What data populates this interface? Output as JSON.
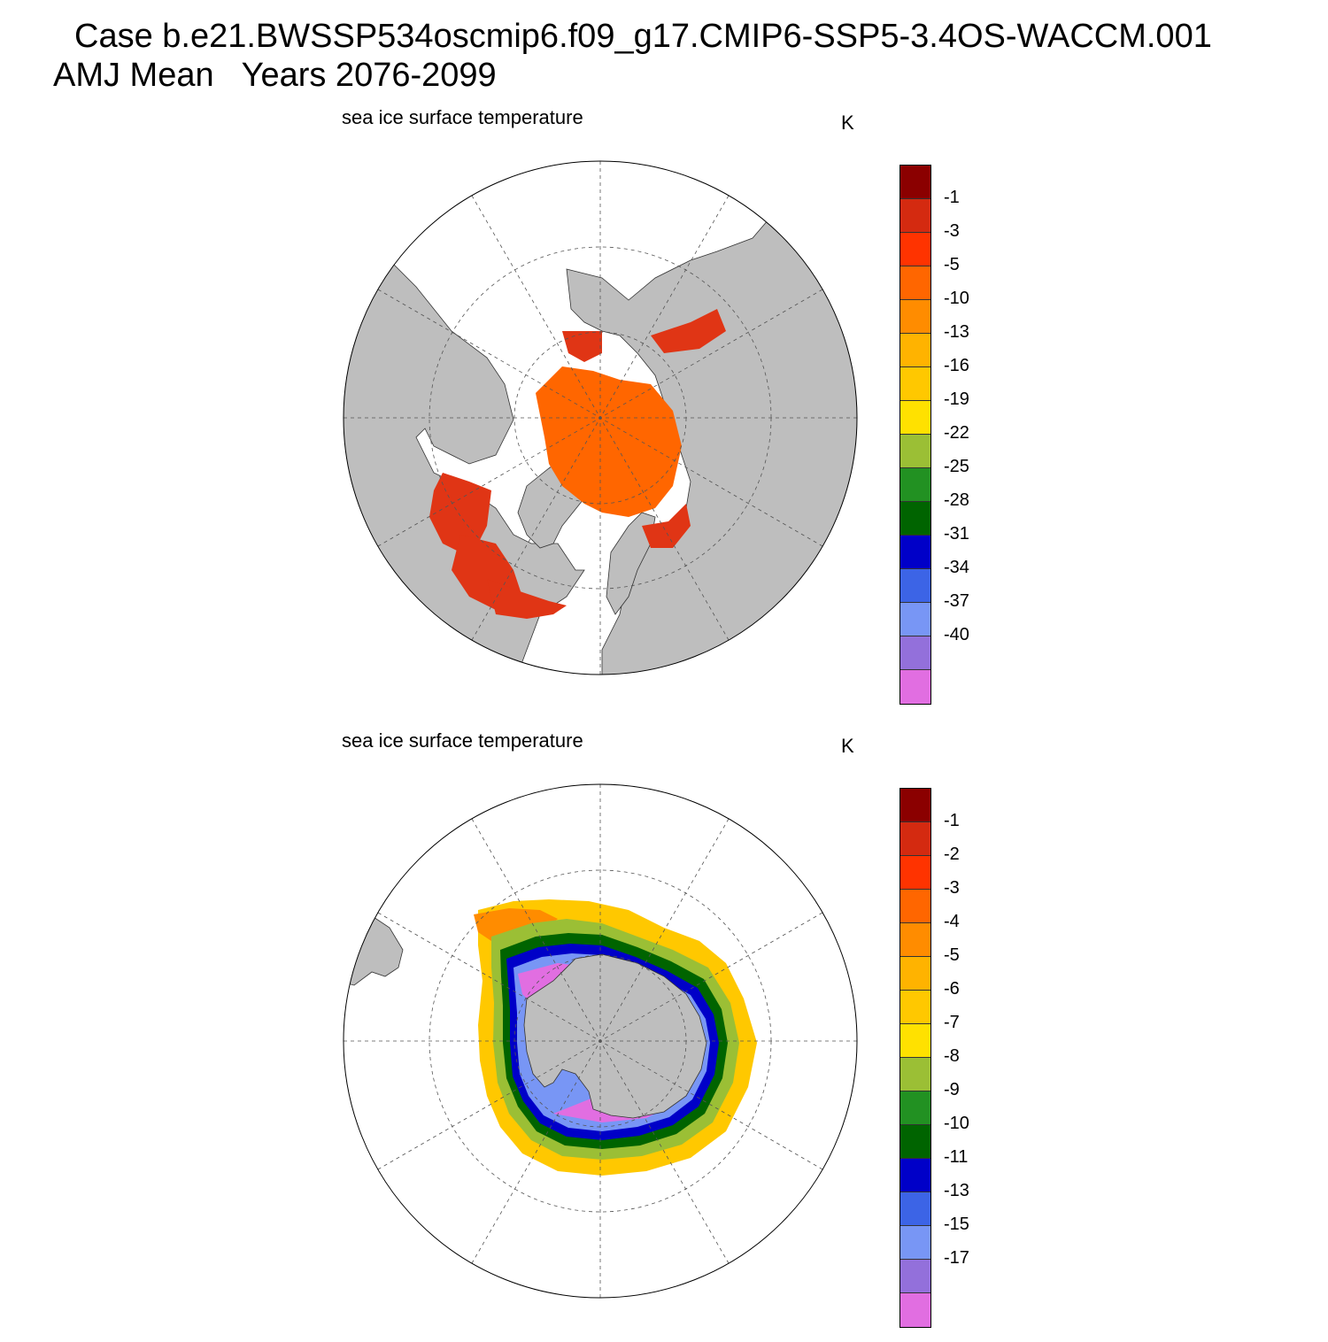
{
  "header": {
    "case_line": "Case b.e21.BWSSP534oscmip6.f09_g17.CMIP6-SSP5-3.4OS-WACCM.001",
    "period_line": "AMJ Mean   Years 2076-2099"
  },
  "colors": {
    "land": "#bebebe",
    "ocean": "#ffffff",
    "palette": [
      "#8b0000",
      "#d42a10",
      "#ff3300",
      "#ff6600",
      "#ff8c00",
      "#ffb300",
      "#ffc800",
      "#ffe100",
      "#9bbf35",
      "#229122",
      "#006400",
      "#0000c8",
      "#3c64e6",
      "#7896f5",
      "#9370db",
      "#e16ee1"
    ]
  },
  "maps": [
    {
      "id": "north",
      "panel_title": "sea ice surface temperature",
      "units": "K",
      "projection": "north-polar-stereographic",
      "colorbar_labels": [
        "-1",
        "-3",
        "-5",
        "-10",
        "-13",
        "-16",
        "-19",
        "-22",
        "-25",
        "-28",
        "-31",
        "-34",
        "-37",
        "-40"
      ]
    },
    {
      "id": "south",
      "panel_title": "sea ice surface temperature",
      "units": "K",
      "projection": "south-polar-stereographic",
      "colorbar_labels": [
        "-1",
        "-2",
        "-3",
        "-4",
        "-5",
        "-6",
        "-7",
        "-8",
        "-9",
        "-10",
        "-11",
        "-13",
        "-15",
        "-17"
      ]
    }
  ]
}
